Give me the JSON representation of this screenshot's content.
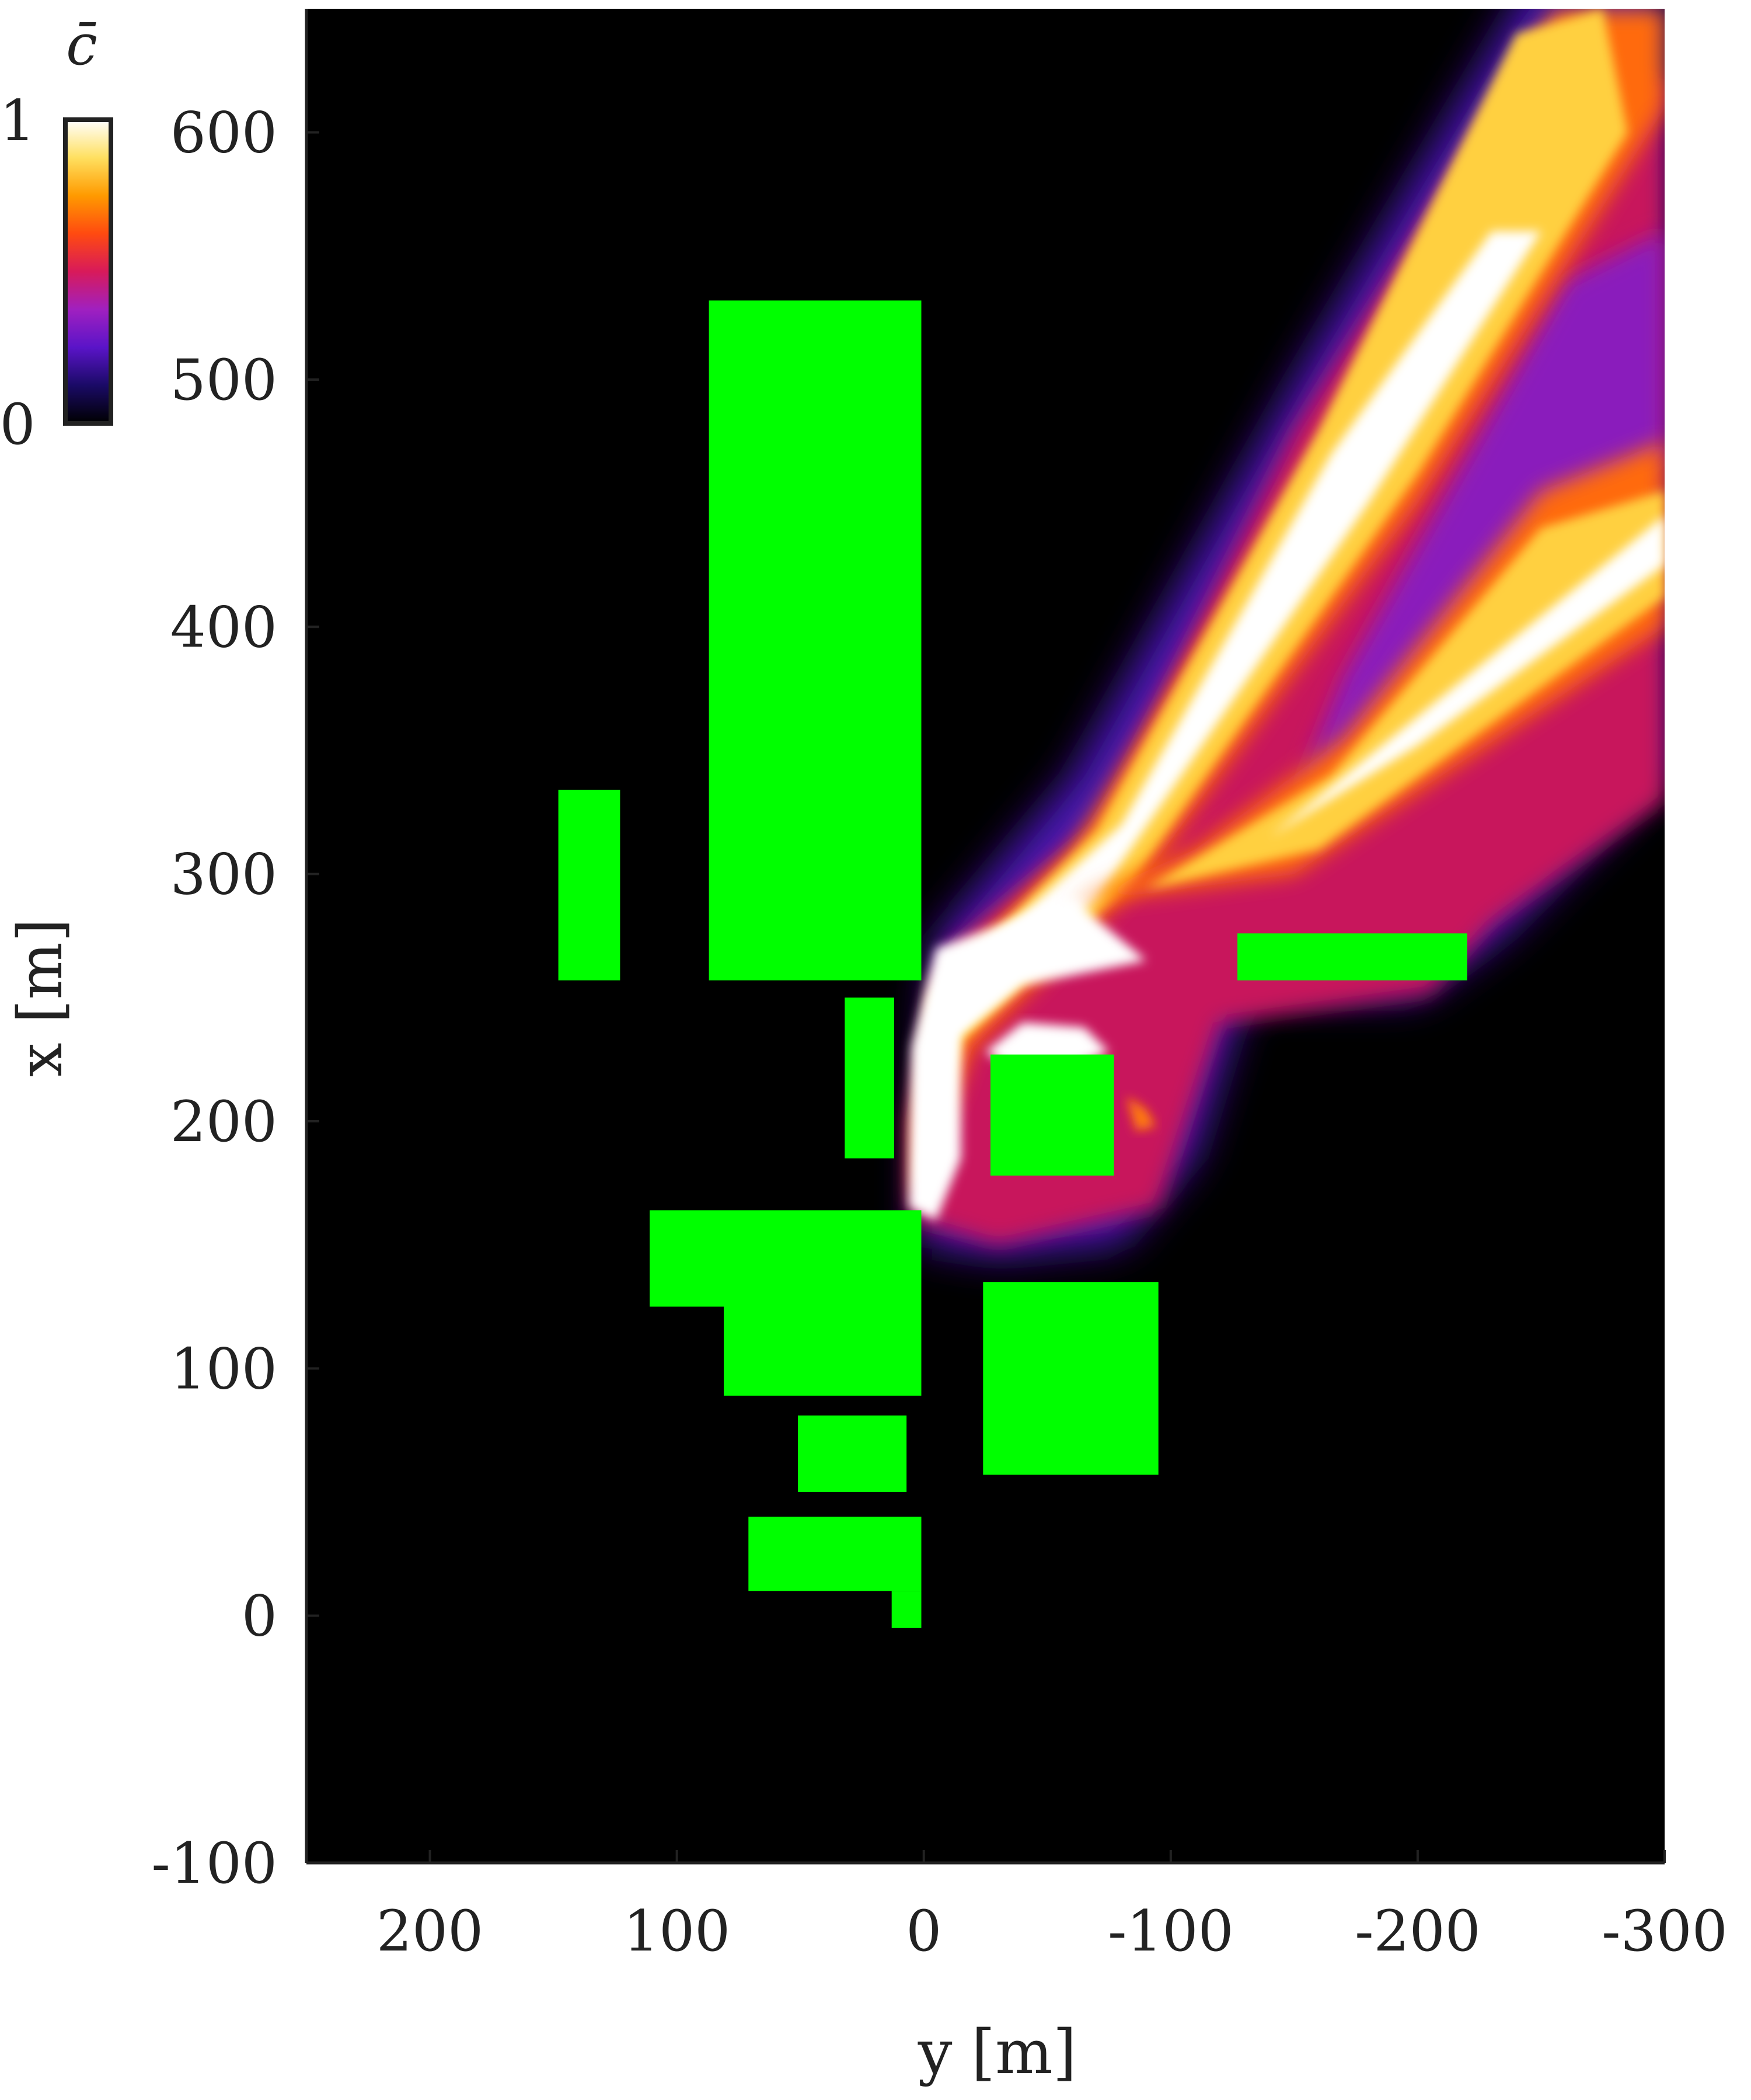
{
  "chart_data": {
    "type": "heatmap",
    "title": "",
    "xlabel": "y [m]",
    "ylabel": "x [m]",
    "x_axis_reversed": true,
    "xlim": [
      250,
      -300
    ],
    "ylim": [
      -100,
      650
    ],
    "xticks": [
      "200",
      "100",
      "0",
      "-100",
      "-200",
      "-300"
    ],
    "yticks": [
      "-100",
      "0",
      "100",
      "200",
      "300",
      "400",
      "500",
      "600"
    ],
    "background_color": "#000000",
    "colorbar": {
      "label": "c̄",
      "min_label": "0",
      "max_label": "1",
      "colormap": [
        "#000000",
        "#1a0a66",
        "#5a14c8",
        "#a020c0",
        "#d81a5a",
        "#ff4a10",
        "#ff9a00",
        "#ffe060",
        "#ffffff"
      ]
    },
    "obstacle_color": "#00ff00",
    "obstacles": [
      {
        "name": "building-tall",
        "y_range": [
          1,
          87
        ],
        "x_range": [
          257,
          532
        ]
      },
      {
        "name": "building-left",
        "y_range": [
          123,
          148
        ],
        "x_range": [
          257,
          334
        ]
      },
      {
        "name": "building-narrow",
        "y_range": [
          12,
          32
        ],
        "x_range": [
          185,
          250
        ]
      },
      {
        "name": "building-center-square",
        "y_range": [
          -77,
          -27
        ],
        "x_range": [
          178,
          227
        ]
      },
      {
        "name": "building-right-bar",
        "y_range": [
          -220,
          -127
        ],
        "x_range": [
          257,
          276
        ]
      },
      {
        "name": "building-l-upper",
        "y_range": [
          1,
          111
        ],
        "x_range": [
          125,
          164
        ]
      },
      {
        "name": "building-l-lower",
        "y_range": [
          1,
          81
        ],
        "x_range": [
          89,
          125
        ]
      },
      {
        "name": "building-right-block",
        "y_range": [
          -95,
          -24
        ],
        "x_range": [
          57,
          135
        ]
      },
      {
        "name": "building-small",
        "y_range": [
          7,
          51
        ],
        "x_range": [
          50,
          81
        ]
      },
      {
        "name": "building-bottom-upper",
        "y_range": [
          1,
          71
        ],
        "x_range": [
          10,
          40
        ]
      },
      {
        "name": "building-bottom-stub",
        "y_range": [
          1,
          13
        ],
        "x_range": [
          -5,
          10
        ]
      }
    ],
    "concentration_plumes": [
      {
        "name": "upper-plume",
        "from": [
          3,
          195
        ],
        "to": [
          -300,
          640
        ],
        "peak": 1.0
      },
      {
        "name": "lower-plume",
        "from": [
          -80,
          270
        ],
        "to": [
          -300,
          460
        ],
        "peak": 1.0
      },
      {
        "name": "wake-region",
        "around": [
          -60,
          215
        ],
        "peak": 0.45
      }
    ]
  }
}
